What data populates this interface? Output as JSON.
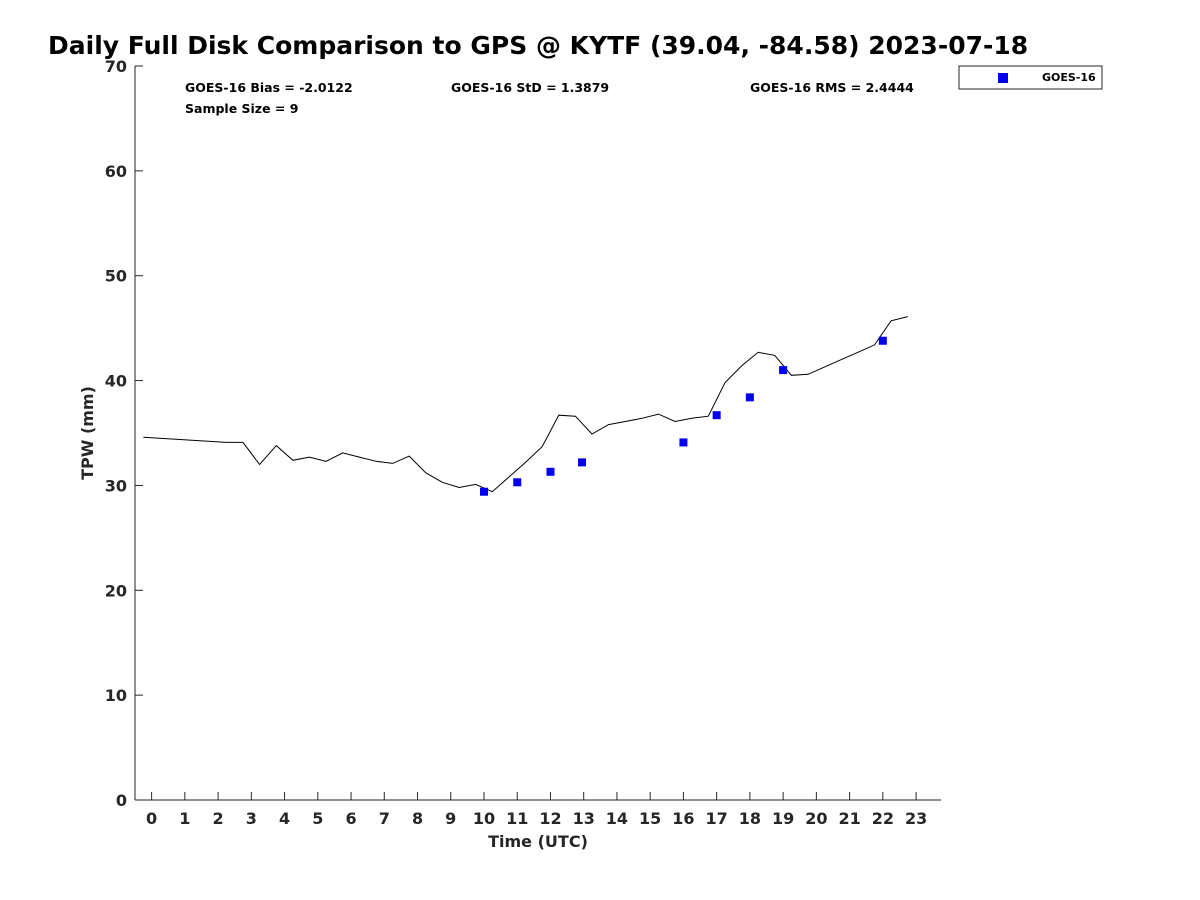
{
  "chart_data": {
    "type": "scatter",
    "title": "Daily Full Disk Comparison to GPS @ KYTF (39.04, -84.58) 2023-07-18",
    "xlabel": "Time (UTC)",
    "ylabel": "TPW (mm)",
    "xlim": [
      -0.5,
      23.75
    ],
    "ylim": [
      0,
      70
    ],
    "x_ticks": [
      0,
      1,
      2,
      3,
      4,
      5,
      6,
      7,
      8,
      9,
      10,
      11,
      12,
      13,
      14,
      15,
      16,
      17,
      18,
      19,
      20,
      21,
      22,
      23
    ],
    "y_ticks": [
      0,
      10,
      20,
      30,
      40,
      50,
      60,
      70
    ],
    "grid": false,
    "legend_position": "top-right",
    "stats": {
      "bias": "GOES-16 Bias = -2.0122",
      "std": "GOES-16 StD = 1.3879",
      "rms": "GOES-16 RMS = 2.4444",
      "sample": "Sample Size = 9"
    },
    "series": [
      {
        "name": "GOES-16",
        "kind": "scatter",
        "marker": "square",
        "color": "#0000ee",
        "x": [
          10.0,
          11.0,
          12.0,
          12.95,
          16.0,
          17.0,
          18.0,
          19.0,
          22.0
        ],
        "y": [
          29.4,
          30.3,
          31.3,
          32.2,
          34.1,
          36.7,
          38.4,
          41.0,
          43.8
        ]
      },
      {
        "kind": "line",
        "color": "#000000",
        "x": [
          -0.25,
          2.25,
          2.75,
          3.25,
          3.75,
          4.25,
          4.75,
          5.25,
          5.75,
          6.25,
          6.75,
          7.25,
          7.75,
          8.25,
          8.75,
          9.25,
          9.75,
          10.25,
          10.75,
          11.25,
          11.75,
          12.25,
          12.75,
          13.25,
          13.75,
          14.25,
          14.75,
          15.25,
          15.75,
          16.25,
          16.75,
          17.25,
          17.75,
          18.25,
          18.75,
          19.25,
          19.75,
          20.25,
          20.75,
          21.25,
          21.75,
          22.25,
          22.75
        ],
        "y": [
          34.6,
          34.1,
          34.1,
          32.0,
          33.8,
          32.4,
          32.7,
          32.3,
          33.1,
          32.7,
          32.3,
          32.1,
          32.8,
          31.2,
          30.3,
          29.8,
          30.1,
          29.4,
          30.8,
          32.2,
          33.7,
          36.7,
          36.6,
          34.9,
          35.8,
          36.1,
          36.4,
          36.8,
          36.1,
          36.4,
          36.6,
          39.8,
          41.4,
          42.7,
          42.4,
          40.5,
          40.6,
          41.3,
          42.0,
          42.7,
          43.4,
          45.7,
          46.1
        ]
      }
    ]
  }
}
